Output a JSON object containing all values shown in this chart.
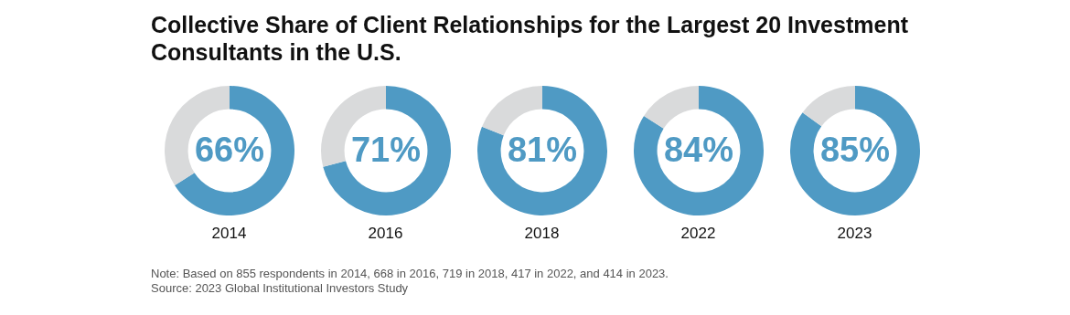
{
  "chart_data": [
    {
      "type": "donut",
      "title": "Collective Share of Client Relationships for the Largest 20 Investment Consultants in the U.S.",
      "xlabel": "2014",
      "categories": [
        null,
        null
      ],
      "values": [
        66,
        34
      ],
      "colors": [
        "#4f9ac4",
        "#d9dadb"
      ],
      "value_labels": [
        "66%",
        null
      ],
      "annotations": [
        "Note: Based on 855 respondents in 2014, 668 in 2016, 719 in 2018, 417 in 2022, and 414 in 2023.",
        "Source: 2023 Global Institutional Investors Study"
      ]
    },
    {
      "type": "donut",
      "xlabel": "2016",
      "categories": [
        null,
        null
      ],
      "values": [
        71,
        29
      ],
      "colors": [
        "#4f9ac4",
        "#d9dadb"
      ],
      "value_labels": [
        "71%",
        null
      ]
    },
    {
      "type": "donut",
      "xlabel": "2018",
      "categories": [
        null,
        null
      ],
      "values": [
        81,
        19
      ],
      "colors": [
        "#4f9ac4",
        "#d9dadb"
      ],
      "value_labels": [
        "81%",
        null
      ]
    },
    {
      "type": "donut",
      "xlabel": "2022",
      "categories": [
        null,
        null
      ],
      "values": [
        84,
        16
      ],
      "colors": [
        "#4f9ac4",
        "#d9dadb"
      ],
      "value_labels": [
        "84%",
        null
      ]
    },
    {
      "type": "donut",
      "xlabel": "2023",
      "categories": [
        null,
        null
      ],
      "values": [
        85,
        15
      ],
      "colors": [
        "#4f9ac4",
        "#d9dadb"
      ],
      "value_labels": [
        "85%",
        null
      ]
    }
  ]
}
